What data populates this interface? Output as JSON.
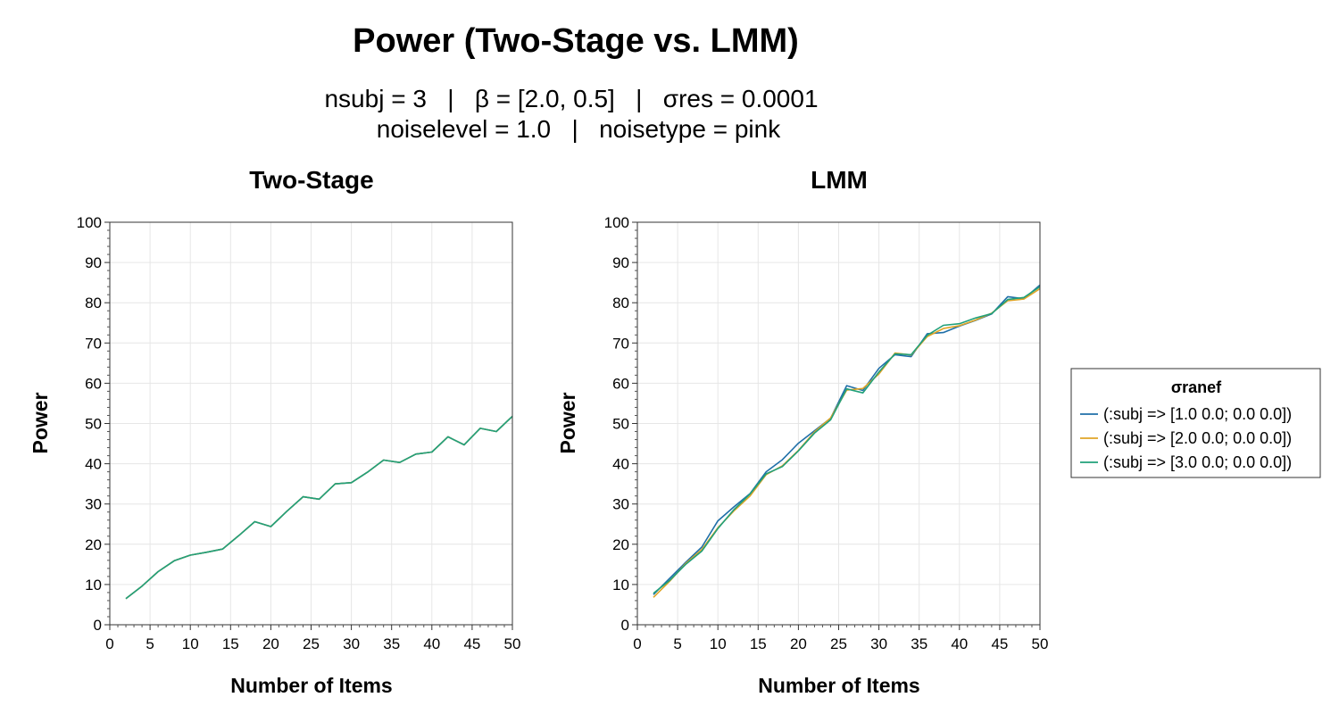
{
  "figure": {
    "title": "Power (Two-Stage vs. LMM)",
    "subtitle_line1": "nsubj = 3   |   β = [2.0, 0.5]   |   σres = 0.0001",
    "subtitle_line2": "noiselevel = 1.0   |   noisetype = pink"
  },
  "legend": {
    "title": "σranef",
    "placement": "right",
    "entries": [
      {
        "label": "(:subj => [1.0 0.0; 0.0 0.0])",
        "color": "#1f6fa8"
      },
      {
        "label": "(:subj => [2.0 0.0; 0.0 0.0])",
        "color": "#e0a526"
      },
      {
        "label": "(:subj => [3.0 0.0; 0.0 0.0])",
        "color": "#21a07a"
      }
    ]
  },
  "chart_data": [
    {
      "type": "line",
      "title": "Two-Stage",
      "xlabel": "Number of Items",
      "ylabel": "Power",
      "xlim": [
        0,
        50
      ],
      "ylim": [
        0,
        100
      ],
      "xticks": [
        0,
        5,
        10,
        15,
        20,
        25,
        30,
        35,
        40,
        45,
        50
      ],
      "yticks": [
        0,
        10,
        20,
        30,
        40,
        50,
        60,
        70,
        80,
        90,
        100
      ],
      "grid": true,
      "x": [
        2,
        4,
        6,
        8,
        10,
        12,
        14,
        16,
        18,
        20,
        22,
        24,
        26,
        28,
        30,
        32,
        34,
        36,
        38,
        40,
        42,
        44,
        46,
        48,
        50
      ],
      "series": [
        {
          "name": "(:subj => [1.0 0.0; 0.0 0.0])",
          "color": "#1f6fa8",
          "values": [
            6.5,
            9.6,
            13.2,
            15.9,
            17.3,
            18.0,
            18.8,
            22.1,
            25.6,
            24.4,
            28.2,
            31.8,
            31.2,
            35.0,
            35.3,
            37.9,
            40.9,
            40.3,
            42.4,
            42.9,
            46.7,
            44.7,
            48.8,
            48.0,
            51.8
          ]
        },
        {
          "name": "(:subj => [2.0 0.0; 0.0 0.0])",
          "color": "#e0a526",
          "values": [
            6.5,
            9.6,
            13.2,
            15.9,
            17.3,
            18.0,
            18.8,
            22.1,
            25.6,
            24.4,
            28.2,
            31.8,
            31.2,
            35.0,
            35.3,
            37.9,
            40.9,
            40.3,
            42.4,
            42.9,
            46.7,
            44.7,
            48.8,
            48.0,
            51.8
          ]
        },
        {
          "name": "(:subj => [3.0 0.0; 0.0 0.0])",
          "color": "#21a07a",
          "values": [
            6.5,
            9.6,
            13.2,
            15.9,
            17.3,
            18.0,
            18.8,
            22.1,
            25.6,
            24.4,
            28.2,
            31.8,
            31.2,
            35.0,
            35.3,
            37.9,
            40.9,
            40.3,
            42.4,
            42.9,
            46.7,
            44.7,
            48.8,
            48.0,
            51.8
          ]
        }
      ]
    },
    {
      "type": "line",
      "title": "LMM",
      "xlabel": "Number of Items",
      "ylabel": "Power",
      "xlim": [
        0,
        50
      ],
      "ylim": [
        0,
        100
      ],
      "xticks": [
        0,
        5,
        10,
        15,
        20,
        25,
        30,
        35,
        40,
        45,
        50
      ],
      "yticks": [
        0,
        10,
        20,
        30,
        40,
        50,
        60,
        70,
        80,
        90,
        100
      ],
      "grid": true,
      "x": [
        2,
        4,
        6,
        8,
        10,
        12,
        14,
        16,
        18,
        20,
        22,
        24,
        26,
        28,
        30,
        32,
        34,
        36,
        38,
        40,
        42,
        44,
        46,
        48,
        50
      ],
      "series": [
        {
          "name": "(:subj => [1.0 0.0; 0.0 0.0])",
          "color": "#1f6fa8",
          "values": [
            7.5,
            11.5,
            15.5,
            19.3,
            25.8,
            29.3,
            32.6,
            38.0,
            41.0,
            45.1,
            48.2,
            51.3,
            59.4,
            58.2,
            63.7,
            67.1,
            66.6,
            72.3,
            72.6,
            74.2,
            75.6,
            77.2,
            81.5,
            81.0,
            84.4
          ]
        },
        {
          "name": "(:subj => [2.0 0.0; 0.0 0.0])",
          "color": "#e0a526",
          "values": [
            6.8,
            10.8,
            15.2,
            18.7,
            24.1,
            28.3,
            32.0,
            37.3,
            39.5,
            43.3,
            47.9,
            51.4,
            58.3,
            58.7,
            62.3,
            67.5,
            67.0,
            71.6,
            73.6,
            74.3,
            75.7,
            77.4,
            80.5,
            80.9,
            83.5
          ]
        },
        {
          "name": "(:subj => [3.0 0.0; 0.0 0.0])",
          "color": "#21a07a",
          "values": [
            7.8,
            11.0,
            15.0,
            18.3,
            23.9,
            28.6,
            32.5,
            37.5,
            39.3,
            43.2,
            47.6,
            50.9,
            58.6,
            57.6,
            62.8,
            67.3,
            67.1,
            71.9,
            74.4,
            74.8,
            76.2,
            77.3,
            80.8,
            81.3,
            84.0
          ]
        }
      ]
    }
  ]
}
